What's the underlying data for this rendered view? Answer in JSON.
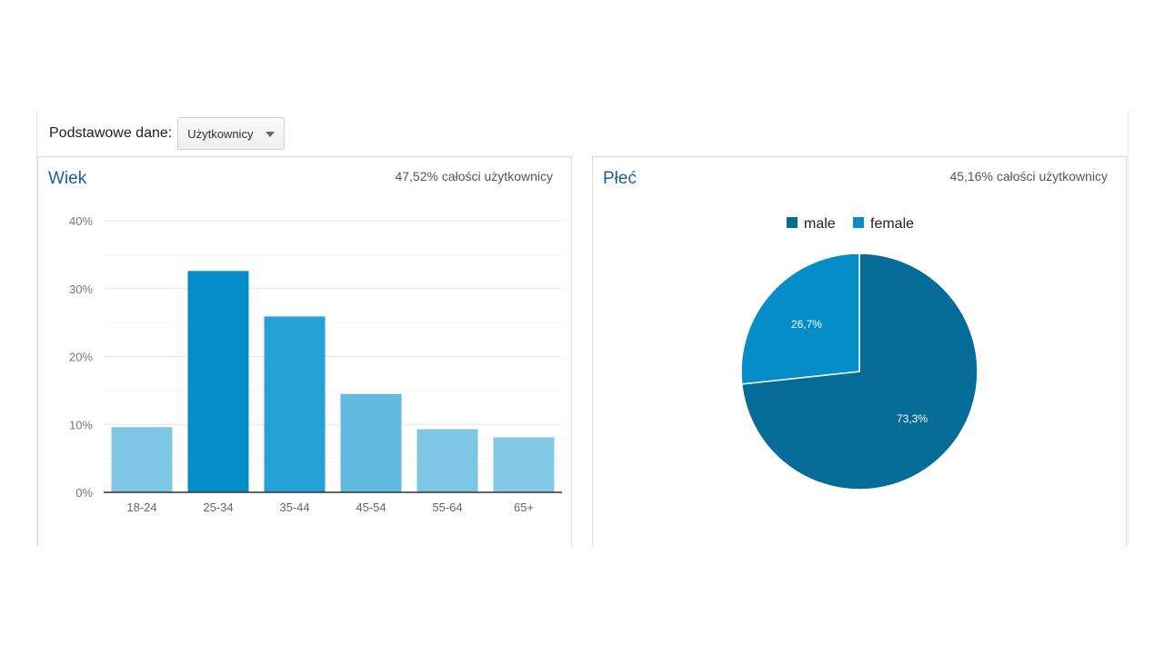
{
  "toolbar": {
    "label": "Podstawowe dane:",
    "selected_metric": "Użytkownicy",
    "caret_icon": "caret-down-icon"
  },
  "age_card": {
    "title": "Wiek",
    "subtitle": "47,52% całości użytkownicy"
  },
  "gender_card": {
    "title": "Płeć",
    "subtitle": "45,16% całości użytkownicy"
  },
  "chart_data": [
    {
      "type": "bar",
      "title": "Wiek",
      "categories": [
        "18-24",
        "25-34",
        "35-44",
        "45-54",
        "55-64",
        "65+"
      ],
      "values": [
        9.6,
        32.6,
        25.9,
        14.5,
        9.3,
        8.1
      ],
      "bar_colors": [
        "#7ec6e6",
        "#058dc7",
        "#27a0d6",
        "#61b9e0",
        "#7ec6e6",
        "#85c9e8"
      ],
      "ylim": [
        0,
        40
      ],
      "yticks": [
        0,
        10,
        20,
        30,
        40
      ],
      "ytick_labels": [
        "0%",
        "10%",
        "20%",
        "30%",
        "40%"
      ],
      "grid": true
    },
    {
      "type": "pie",
      "title": "Płeć",
      "legend_position": "top",
      "slices": [
        {
          "name": "male",
          "value": 73.3,
          "label": "73,3%",
          "color": "#056c97"
        },
        {
          "name": "female",
          "value": 26.7,
          "label": "26,7%",
          "color": "#058dc7"
        }
      ]
    }
  ]
}
